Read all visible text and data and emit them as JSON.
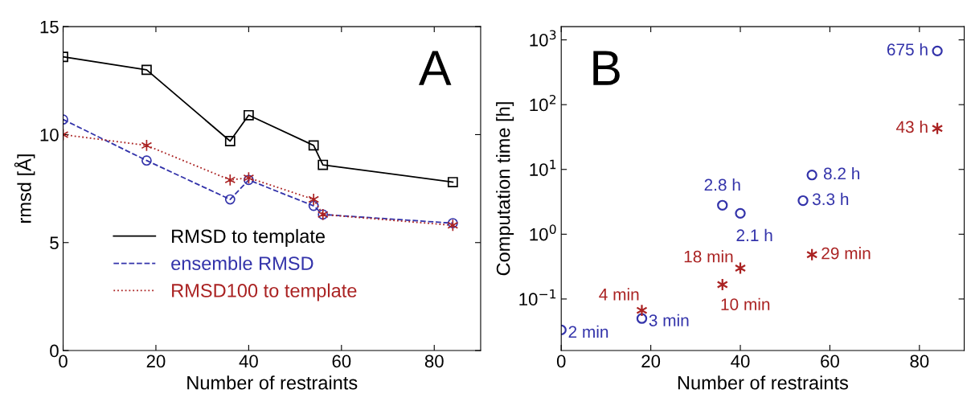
{
  "chart_data": [
    {
      "type": "line",
      "xlabel": "Number of restraints",
      "ylabel": "rmsd [Å]",
      "annotations": [
        "A"
      ],
      "xlim": [
        0,
        90
      ],
      "xticks": [
        0,
        20,
        40,
        60,
        80
      ],
      "ylim": [
        0,
        15
      ],
      "yticks": [
        0,
        5,
        10,
        15
      ],
      "grid": false,
      "legend": "bottom left",
      "series": [
        {
          "name": "RMSD to template",
          "color": "#000000",
          "marker": "square",
          "line_style": "solid",
          "x": [
            0,
            18,
            36,
            40,
            54,
            56,
            84
          ],
          "values": [
            13.6,
            13.0,
            9.7,
            10.9,
            9.5,
            8.6,
            7.8
          ]
        },
        {
          "name": "ensemble RMSD",
          "color": "#3333aa",
          "marker": "circle",
          "line_style": "dashed",
          "x": [
            0,
            18,
            36,
            40,
            54,
            56,
            84
          ],
          "values": [
            10.7,
            8.8,
            7.0,
            7.9,
            6.7,
            6.3,
            5.9
          ]
        },
        {
          "name": "RMSD100 to template",
          "color": "#aa2222",
          "marker": "cross",
          "line_style": "dotted",
          "x": [
            0,
            18,
            36,
            40,
            54,
            56,
            84
          ],
          "values": [
            10.0,
            9.5,
            7.9,
            8.0,
            7.0,
            6.3,
            5.8
          ]
        }
      ]
    },
    {
      "type": "scatter",
      "xlabel": "Number of restraints",
      "ylabel": "Computation time [h]",
      "annotations": [
        "B",
        {
          "text": "2 min",
          "x": 0,
          "y": 0.0333
        },
        {
          "text": "3 min",
          "x": 18,
          "y": 0.05
        },
        {
          "text": "2.8 h",
          "x": 36,
          "y": 2.8
        },
        {
          "text": "2.1 h",
          "x": 40,
          "y": 2.1
        },
        {
          "text": "3.3 h",
          "x": 54,
          "y": 3.3
        },
        {
          "text": "8.2 h",
          "x": 56,
          "y": 8.2
        },
        {
          "text": "675 h",
          "x": 84,
          "y": 675
        },
        {
          "text": "4 min",
          "x": 18,
          "y": 0.0667
        },
        {
          "text": "10 min",
          "x": 36,
          "y": 0.1667
        },
        {
          "text": "18 min",
          "x": 40,
          "y": 0.3
        },
        {
          "text": "29 min",
          "x": 56,
          "y": 0.483
        },
        {
          "text": "43 h",
          "x": 84,
          "y": 43
        }
      ],
      "log": "y",
      "xlim": [
        0,
        90
      ],
      "xticks": [
        0,
        20,
        40,
        60,
        80
      ],
      "ylim": [
        0.016,
        1600
      ],
      "yticks": [
        {
          "value": 0.1,
          "label": "10$^{−1}$"
        },
        {
          "value": 1,
          "label": "10$^{0}$"
        },
        {
          "value": 10,
          "label": "10$^{1}$"
        },
        {
          "value": 100,
          "label": "10$^{2}$"
        },
        {
          "value": 1000,
          "label": "10$^{3}$"
        }
      ],
      "grid": false,
      "series": [
        {
          "color": "#3333aa",
          "marker": "circle",
          "x": [
            0,
            18,
            36,
            40,
            54,
            56,
            84
          ],
          "values": [
            0.0333,
            0.05,
            2.8,
            2.1,
            3.3,
            8.2,
            675
          ]
        },
        {
          "color": "#aa2222",
          "marker": "cross",
          "x": [
            18,
            36,
            40,
            56,
            84
          ],
          "values": [
            0.0667,
            0.1667,
            0.3,
            0.483,
            43
          ]
        }
      ]
    }
  ]
}
